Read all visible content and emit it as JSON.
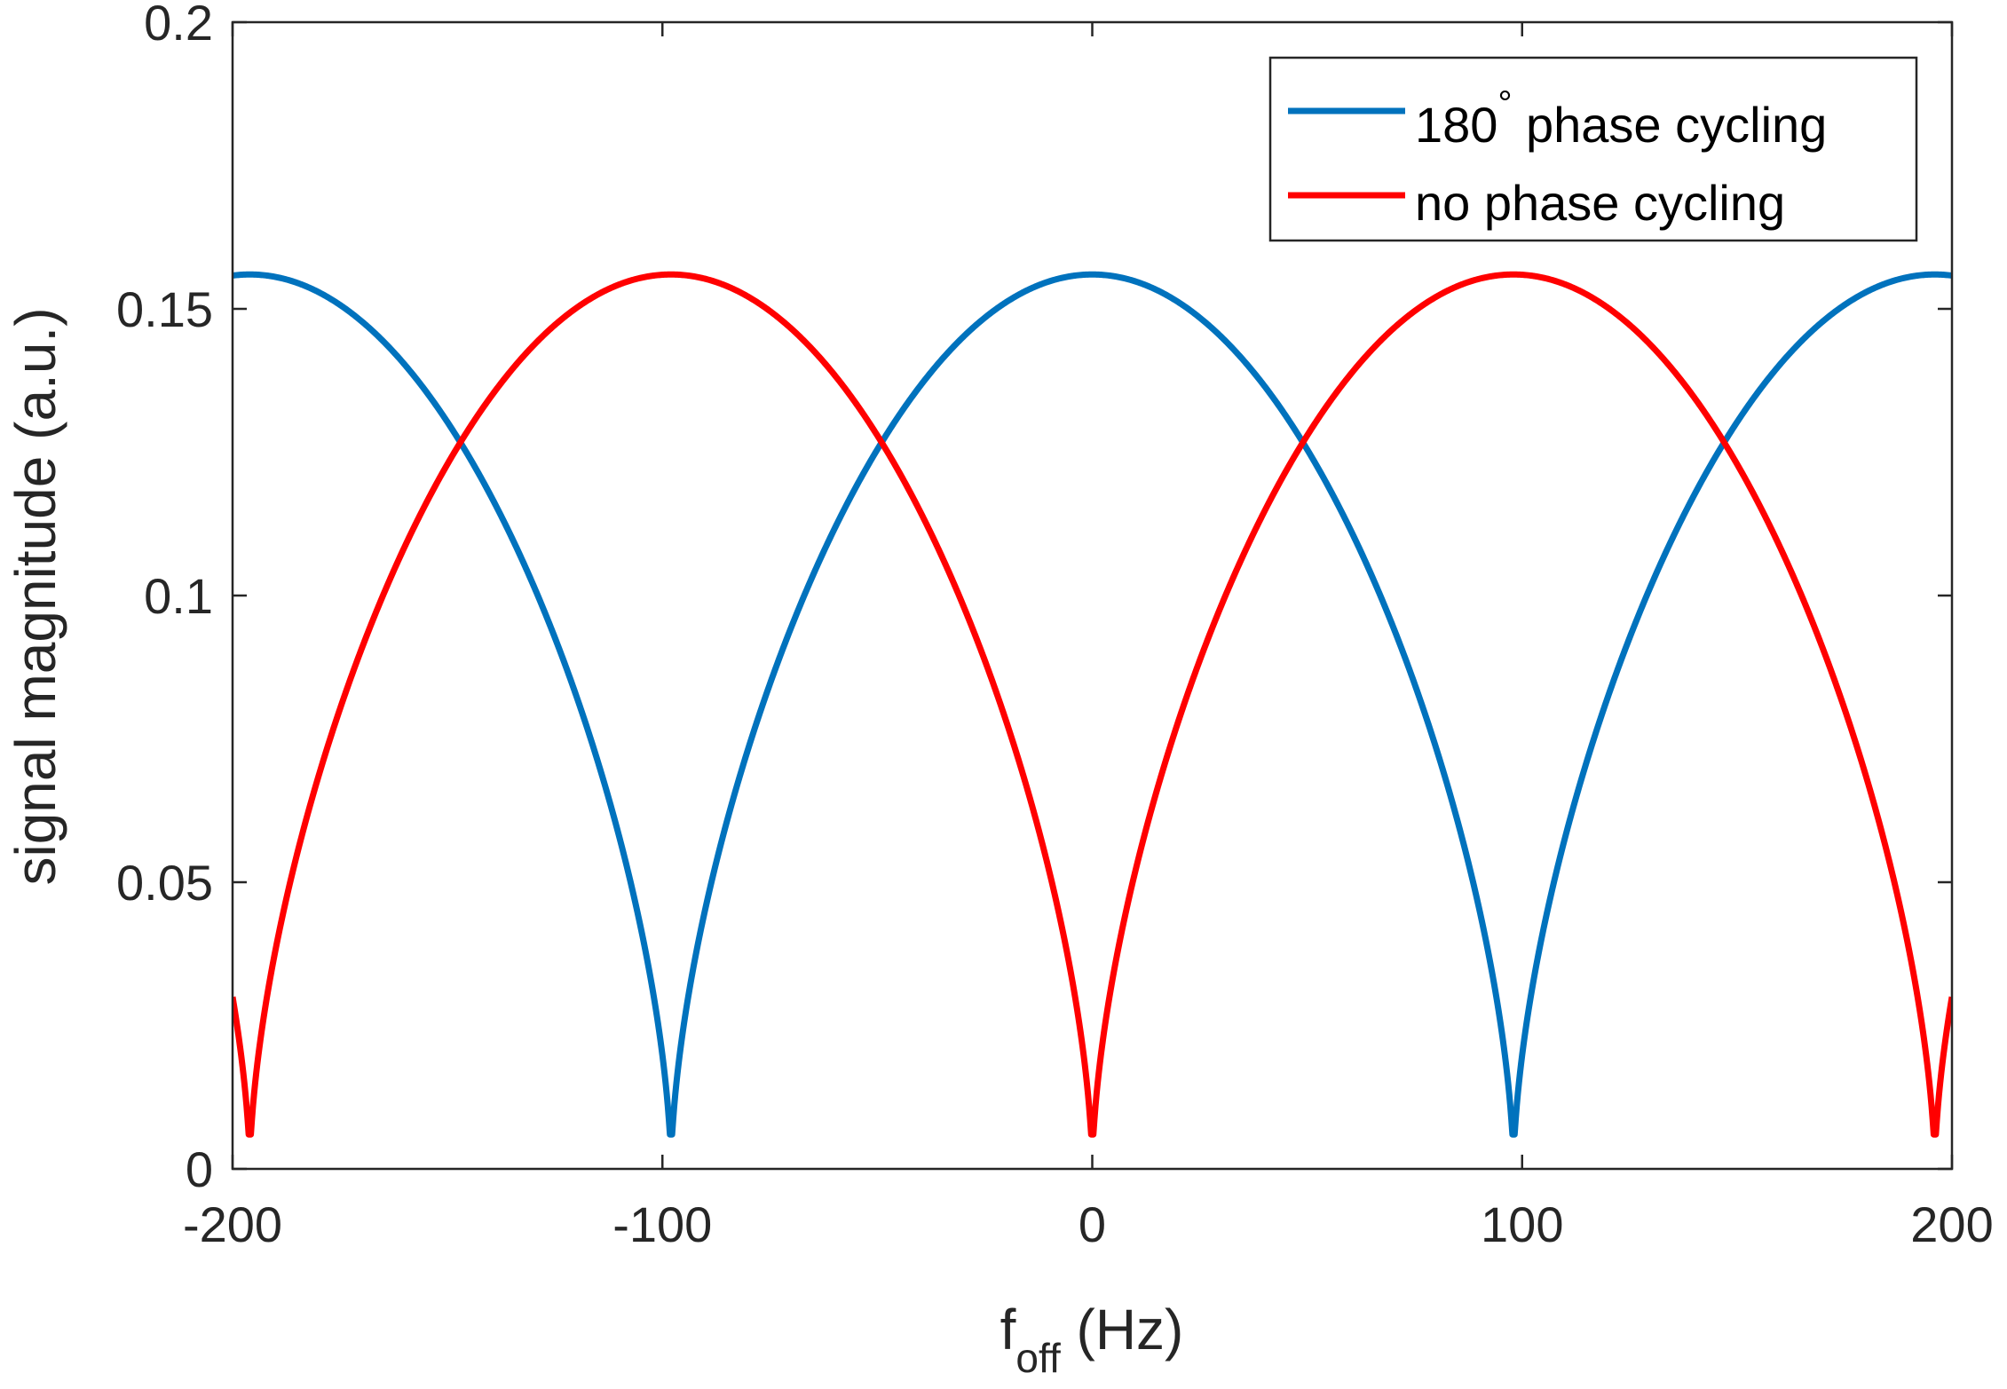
{
  "chart_data": {
    "type": "line",
    "title": "",
    "xlabel": "f",
    "xlabel_subscript": "off",
    "xlabel_suffix": " (Hz)",
    "ylabel": "signal magnitude (a.u.)",
    "xlim": [
      -200,
      200
    ],
    "ylim": [
      0,
      0.2
    ],
    "xticks": [
      -200,
      -100,
      0,
      100,
      200
    ],
    "xtick_labels": [
      "-200",
      "-100",
      "0",
      "100",
      "200"
    ],
    "yticks": [
      0,
      0.05,
      0.1,
      0.15,
      0.2
    ],
    "ytick_labels": [
      "0",
      "0.05",
      "0.1",
      "0.15",
      "0.2"
    ],
    "grid": false,
    "legend_position": "top-right",
    "period_hz": 196,
    "max_value": 0.156,
    "min_value": 0.006,
    "series": [
      {
        "name": "180° phase cycling",
        "label_main": "180",
        "label_degree": "°",
        "label_rest": " phase cycling",
        "color": "#0072BD",
        "peaks_at": [
          -196,
          0,
          196
        ],
        "minima_at": [
          -98,
          98
        ]
      },
      {
        "name": "no phase cycling",
        "label_main": "no phase cycling",
        "color": "#FF0000",
        "peaks_at": [
          -98,
          98
        ],
        "minima_at": [
          -196,
          0,
          196
        ]
      }
    ]
  }
}
